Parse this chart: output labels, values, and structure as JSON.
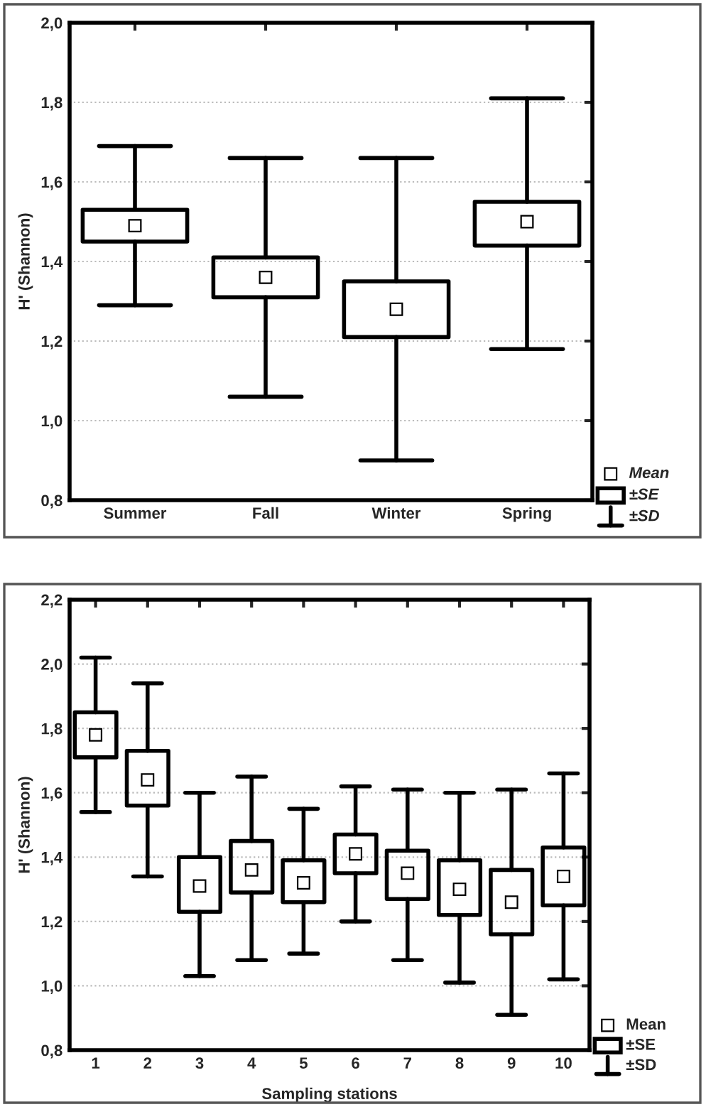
{
  "chart_data": [
    {
      "type": "box",
      "ylabel": "H' (Shannon)",
      "categories": [
        "Summer",
        "Fall",
        "Winter",
        "Spring"
      ],
      "boxes": [
        {
          "low": 1.29,
          "q1": 1.45,
          "mean": 1.49,
          "q3": 1.53,
          "high": 1.69
        },
        {
          "low": 1.06,
          "q1": 1.31,
          "mean": 1.36,
          "q3": 1.41,
          "high": 1.66
        },
        {
          "low": 0.9,
          "q1": 1.21,
          "mean": 1.28,
          "q3": 1.35,
          "high": 1.66
        },
        {
          "low": 1.18,
          "q1": 1.44,
          "mean": 1.5,
          "q3": 1.55,
          "high": 1.81
        }
      ],
      "ylim": [
        0.8,
        2.0
      ],
      "yticks": [
        {
          "value": 0.8,
          "label": "0,8"
        },
        {
          "value": 1.0,
          "label": "1,0"
        },
        {
          "value": 1.2,
          "label": "1,2"
        },
        {
          "value": 1.4,
          "label": "1,4"
        },
        {
          "value": 1.6,
          "label": "1,6"
        },
        {
          "value": 1.8,
          "label": "1,8"
        },
        {
          "value": 2.0,
          "label": "2,0"
        }
      ],
      "grid": "y",
      "marker": "square",
      "annotations": [
        "Mean",
        "±SE",
        "±SD"
      ]
    },
    {
      "type": "box",
      "ylabel": "H' (Shannon)",
      "xlabel": "Sampling stations",
      "categories": [
        "1",
        "2",
        "3",
        "4",
        "5",
        "6",
        "7",
        "8",
        "9",
        "10"
      ],
      "boxes": [
        {
          "low": 1.54,
          "q1": 1.71,
          "mean": 1.78,
          "q3": 1.85,
          "high": 2.02
        },
        {
          "low": 1.34,
          "q1": 1.56,
          "mean": 1.64,
          "q3": 1.73,
          "high": 1.94
        },
        {
          "low": 1.03,
          "q1": 1.23,
          "mean": 1.31,
          "q3": 1.4,
          "high": 1.6
        },
        {
          "low": 1.08,
          "q1": 1.29,
          "mean": 1.36,
          "q3": 1.45,
          "high": 1.65
        },
        {
          "low": 1.1,
          "q1": 1.26,
          "mean": 1.32,
          "q3": 1.39,
          "high": 1.55
        },
        {
          "low": 1.2,
          "q1": 1.35,
          "mean": 1.41,
          "q3": 1.47,
          "high": 1.62
        },
        {
          "low": 1.08,
          "q1": 1.27,
          "mean": 1.35,
          "q3": 1.42,
          "high": 1.61
        },
        {
          "low": 1.01,
          "q1": 1.22,
          "mean": 1.3,
          "q3": 1.39,
          "high": 1.6
        },
        {
          "low": 0.91,
          "q1": 1.16,
          "mean": 1.26,
          "q3": 1.36,
          "high": 1.61
        },
        {
          "low": 1.02,
          "q1": 1.25,
          "mean": 1.34,
          "q3": 1.43,
          "high": 1.66
        }
      ],
      "ylim": [
        0.8,
        2.2
      ],
      "yticks": [
        {
          "value": 0.8,
          "label": "0,8"
        },
        {
          "value": 1.0,
          "label": "1,0"
        },
        {
          "value": 1.2,
          "label": "1,2"
        },
        {
          "value": 1.4,
          "label": "1,4"
        },
        {
          "value": 1.6,
          "label": "1,6"
        },
        {
          "value": 1.8,
          "label": "1,8"
        },
        {
          "value": 2.0,
          "label": "2,0"
        },
        {
          "value": 2.2,
          "label": "2,2"
        }
      ],
      "grid": "y",
      "marker": "square",
      "annotations": [
        "Mean",
        "±SE",
        "±SD"
      ]
    }
  ]
}
